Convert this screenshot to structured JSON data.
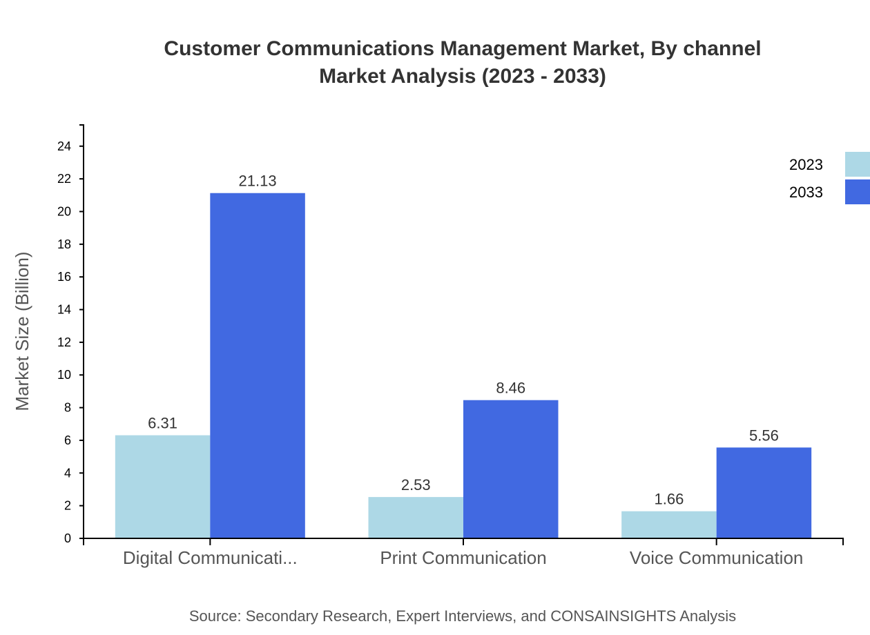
{
  "chart_data": {
    "type": "bar",
    "title_lines": [
      "Customer Communications Management Market, By channel",
      "Market Analysis (2023 - 2033)"
    ],
    "xlabel": "",
    "ylabel": "Market Size (Billion)",
    "categories": [
      "Digital Communicati...",
      "Print Communication",
      "Voice Communication"
    ],
    "series": [
      {
        "name": "2023",
        "color": "#ADD8E6",
        "values": [
          6.31,
          2.53,
          1.66
        ]
      },
      {
        "name": "2033",
        "color": "#4169E1",
        "values": [
          21.13,
          8.46,
          5.56
        ]
      }
    ],
    "ylim": [
      0,
      25.3
    ],
    "yticks": [
      0,
      2,
      4,
      6,
      8,
      10,
      12,
      14,
      16,
      18,
      20,
      22,
      24
    ],
    "grid": false,
    "legend_position": "top-right",
    "source": "Source: Secondary Research, Expert Interviews, and CONSAINSIGHTS Analysis"
  }
}
